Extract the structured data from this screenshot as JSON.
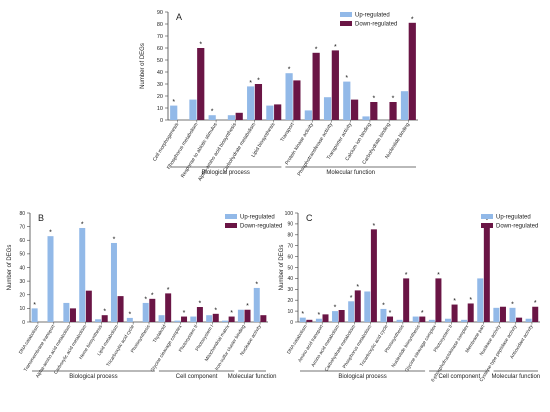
{
  "colors": {
    "up": "#92b9e8",
    "down": "#6a1545",
    "axis": "#444444",
    "text": "#222222"
  },
  "chart_data": [
    {
      "panel": "A",
      "type": "bar",
      "ylabel": "Number of DEGs",
      "ylim": [
        0,
        90
      ],
      "yticks": [
        0,
        10,
        20,
        30,
        40,
        50,
        60,
        70,
        80,
        90
      ],
      "legend": [
        "Up-regulated",
        "Down-regulated"
      ],
      "legend_position": "top-right",
      "categories": [
        "Cell morphogenesis",
        "Phosphorus metabolism",
        "Response to abiotic stimulus",
        "Alpha-amino acid biosynthesis",
        "Carbohydrate metabolism",
        "Lipid biosynthesis",
        "Transport",
        "Protein kinase activity",
        "Phosphotransferase activity",
        "Transporter activity",
        "Calcium ion binding",
        "Carbohydrate binding",
        "Nucleotide binding"
      ],
      "series": [
        {
          "name": "Up-regulated",
          "values": [
            12,
            17,
            4,
            4,
            28,
            12,
            39,
            8,
            19,
            32,
            3,
            0,
            24
          ],
          "star": [
            true,
            false,
            true,
            false,
            true,
            false,
            true,
            false,
            false,
            true,
            false,
            false,
            false
          ]
        },
        {
          "name": "Down-regulated",
          "values": [
            0,
            60,
            0,
            6,
            30,
            13,
            33,
            56,
            58,
            17,
            15,
            15,
            81
          ],
          "star": [
            false,
            true,
            false,
            false,
            true,
            false,
            false,
            true,
            true,
            false,
            true,
            true,
            true
          ]
        }
      ],
      "groups": [
        {
          "label": "Biological process",
          "from": 0,
          "to": 5
        },
        {
          "label": "Molecular function",
          "from": 6,
          "to": 12
        }
      ]
    },
    {
      "panel": "B",
      "type": "bar",
      "ylabel": "Number of DEGs",
      "ylim": [
        0,
        80
      ],
      "yticks": [
        0,
        10,
        20,
        30,
        40,
        50,
        60,
        70,
        80
      ],
      "legend": [
        "Up-regulated",
        "Down-regulated"
      ],
      "legend_position": "top-right",
      "categories": [
        "DNA catabolism",
        "Transmembrane transport",
        "Alpha-amino acid metabolism",
        "Carboxylic acid metabolism",
        "Heme biosynthesis",
        "Lipid metabolism",
        "Tricarboxylic acid cycle",
        "Photosynthesis",
        "Thylakoid",
        "Glycine cleavage complex",
        "Photosystem II",
        "Photosystem I",
        "Mitochondrial matrix",
        "Iron-sulfur cluster binding",
        "Nuclease activity"
      ],
      "series": [
        {
          "name": "Up-regulated",
          "values": [
            10,
            63,
            14,
            69,
            2,
            58,
            3,
            14,
            5,
            1,
            4,
            5,
            1,
            9,
            25
          ],
          "star": [
            true,
            true,
            false,
            true,
            false,
            true,
            true,
            true,
            false,
            false,
            false,
            false,
            false,
            false,
            true
          ]
        },
        {
          "name": "Down-regulated",
          "values": [
            0,
            0,
            10,
            23,
            5,
            19,
            0,
            17,
            21,
            4,
            11,
            6,
            4,
            9,
            5
          ],
          "star": [
            false,
            false,
            false,
            false,
            true,
            false,
            false,
            true,
            true,
            true,
            true,
            true,
            true,
            true,
            false
          ]
        }
      ],
      "groups": [
        {
          "label": "Biological process",
          "from": 0,
          "to": 7
        },
        {
          "label": "Cell component",
          "from": 8,
          "to": 12
        },
        {
          "label": "Molecular function",
          "from": 13,
          "to": 14
        }
      ]
    },
    {
      "panel": "C",
      "type": "bar",
      "ylabel": "Number of DEGs",
      "ylim": [
        0,
        100
      ],
      "yticks": [
        0,
        10,
        20,
        30,
        40,
        50,
        60,
        70,
        80,
        90,
        100
      ],
      "legend": [
        "Up-regulated",
        "Down-regulated"
      ],
      "legend_position": "top-right",
      "categories": [
        "DNA catabolism",
        "Amino acid transport",
        "Amino acid metabolism",
        "Carbohydrate metabolism",
        "Phosphorus metabolism",
        "Tricarboxylic acid cycle",
        "Photosynthesis",
        "Nucleotide biosynthesis",
        "Glycine cleavage complex",
        "Photosystem II",
        "6-phosphofructokinase complex",
        "Membrane part",
        "Nuclease activity",
        "Cysteine-type peptidase activity",
        "Antioxidant activity"
      ],
      "series": [
        {
          "name": "Up-regulated",
          "values": [
            4,
            3,
            10,
            19,
            28,
            12,
            2,
            5,
            2,
            3,
            2,
            40,
            13,
            13,
            3
          ],
          "star": [
            true,
            true,
            true,
            true,
            false,
            true,
            false,
            false,
            false,
            false,
            false,
            false,
            false,
            true,
            false
          ]
        },
        {
          "name": "Down-regulated",
          "values": [
            2,
            7,
            11,
            29,
            85,
            5,
            40,
            5,
            40,
            16,
            17,
            90,
            14,
            4,
            14
          ],
          "star": [
            false,
            false,
            false,
            true,
            true,
            true,
            true,
            true,
            true,
            true,
            true,
            true,
            false,
            false,
            true
          ]
        }
      ],
      "groups": [
        {
          "label": "Biological process",
          "from": 0,
          "to": 7
        },
        {
          "label": "Cell component",
          "from": 8,
          "to": 11
        },
        {
          "label": "Molecular function",
          "from": 12,
          "to": 14
        }
      ]
    }
  ]
}
